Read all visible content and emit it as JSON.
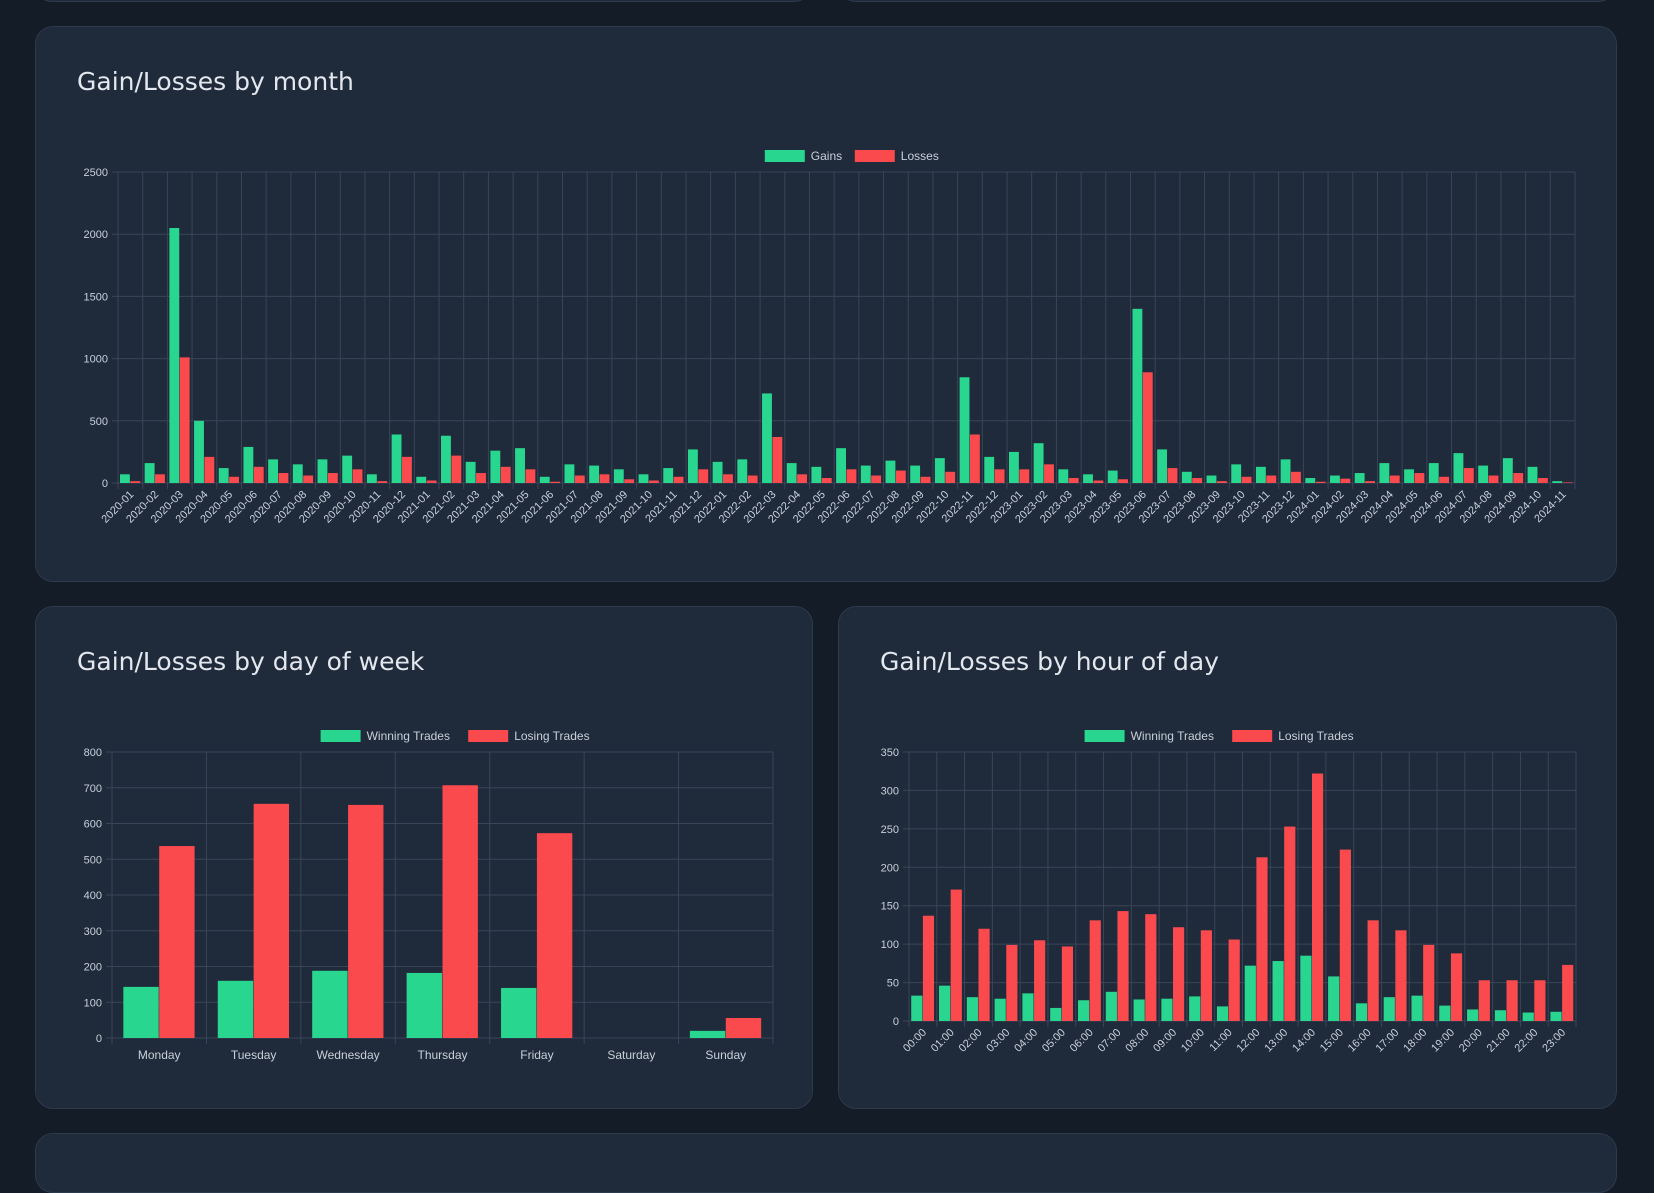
{
  "theme": {
    "bg": "#131c27",
    "card": "#1f2a3a",
    "gain": "#28d68f",
    "loss": "#fa4a4e",
    "grid": "#3a4658",
    "text": "#c9d0da"
  },
  "monthly": {
    "title": "Gain/Losses by month",
    "legend": [
      "Gains",
      "Losses"
    ]
  },
  "weekday": {
    "title": "Gain/Losses by day of week",
    "legend": [
      "Winning Trades",
      "Losing Trades"
    ]
  },
  "hourly": {
    "title": "Gain/Losses by hour of day",
    "legend": [
      "Winning Trades",
      "Losing Trades"
    ]
  },
  "chart_data": [
    {
      "id": "monthly",
      "type": "bar",
      "title": "Gain/Losses by month",
      "xlabel": "",
      "ylabel": "",
      "ylim": [
        0,
        2500
      ],
      "yticks": [
        0,
        500,
        1000,
        1500,
        2000,
        2500
      ],
      "categories": [
        "2020-01",
        "2020-02",
        "2020-03",
        "2020-04",
        "2020-05",
        "2020-06",
        "2020-07",
        "2020-08",
        "2020-09",
        "2020-10",
        "2020-11",
        "2020-12",
        "2021-01",
        "2021-02",
        "2021-03",
        "2021-04",
        "2021-05",
        "2021-06",
        "2021-07",
        "2021-08",
        "2021-09",
        "2021-10",
        "2021-11",
        "2021-12",
        "2022-01",
        "2022-02",
        "2022-03",
        "2022-04",
        "2022-05",
        "2022-06",
        "2022-07",
        "2022-08",
        "2022-09",
        "2022-10",
        "2022-11",
        "2022-12",
        "2023-01",
        "2023-02",
        "2023-03",
        "2023-04",
        "2023-05",
        "2023-06",
        "2023-07",
        "2023-08",
        "2023-09",
        "2023-10",
        "2023-11",
        "2023-12",
        "2024-01",
        "2024-02",
        "2024-03",
        "2024-04",
        "2024-05",
        "2024-06",
        "2024-07",
        "2024-08",
        "2024-09",
        "2024-10",
        "2024-11"
      ],
      "series": [
        {
          "name": "Gains",
          "color": "#28d68f",
          "values": [
            70,
            160,
            2050,
            500,
            120,
            290,
            190,
            150,
            190,
            220,
            70,
            390,
            50,
            380,
            170,
            260,
            280,
            50,
            150,
            140,
            110,
            70,
            120,
            270,
            170,
            190,
            720,
            160,
            130,
            280,
            140,
            180,
            140,
            200,
            850,
            210,
            250,
            320,
            110,
            70,
            100,
            1400,
            270,
            90,
            60,
            150,
            130,
            190,
            40,
            60,
            80,
            160,
            110,
            160,
            240,
            140,
            200,
            130,
            15
          ]
        },
        {
          "name": "Losses",
          "color": "#fa4a4e",
          "values": [
            15,
            70,
            1010,
            210,
            50,
            130,
            80,
            60,
            80,
            110,
            15,
            210,
            20,
            220,
            80,
            130,
            110,
            10,
            60,
            70,
            30,
            20,
            50,
            110,
            70,
            60,
            370,
            70,
            40,
            110,
            60,
            100,
            50,
            90,
            390,
            110,
            110,
            150,
            40,
            20,
            30,
            890,
            120,
            40,
            15,
            50,
            60,
            90,
            10,
            35,
            15,
            60,
            80,
            50,
            120,
            60,
            80,
            40,
            5
          ]
        }
      ]
    },
    {
      "id": "weekday",
      "type": "bar",
      "title": "Gain/Losses by day of week",
      "xlabel": "",
      "ylabel": "",
      "ylim": [
        0,
        800
      ],
      "yticks": [
        0,
        100,
        200,
        300,
        400,
        500,
        600,
        700,
        800
      ],
      "categories": [
        "Monday",
        "Tuesday",
        "Wednesday",
        "Thursday",
        "Friday",
        "Saturday",
        "Sunday"
      ],
      "series": [
        {
          "name": "Winning Trades",
          "color": "#28d68f",
          "values": [
            143,
            160,
            188,
            182,
            140,
            0,
            20
          ]
        },
        {
          "name": "Losing Trades",
          "color": "#fa4a4e",
          "values": [
            537,
            655,
            652,
            707,
            573,
            0,
            56
          ]
        }
      ]
    },
    {
      "id": "hourly",
      "type": "bar",
      "title": "Gain/Losses by hour of day",
      "xlabel": "",
      "ylabel": "",
      "ylim": [
        0,
        350
      ],
      "yticks": [
        0,
        50,
        100,
        150,
        200,
        250,
        300,
        350
      ],
      "categories": [
        "00:00",
        "01:00",
        "02:00",
        "03:00",
        "04:00",
        "05:00",
        "06:00",
        "07:00",
        "08:00",
        "09:00",
        "10:00",
        "11:00",
        "12:00",
        "13:00",
        "14:00",
        "15:00",
        "16:00",
        "17:00",
        "18:00",
        "19:00",
        "20:00",
        "21:00",
        "22:00",
        "23:00"
      ],
      "series": [
        {
          "name": "Winning Trades",
          "color": "#28d68f",
          "values": [
            33,
            46,
            31,
            29,
            36,
            17,
            27,
            38,
            28,
            29,
            32,
            19,
            72,
            78,
            85,
            58,
            23,
            31,
            33,
            20,
            15,
            14,
            11,
            12
          ]
        },
        {
          "name": "Losing Trades",
          "color": "#fa4a4e",
          "values": [
            137,
            171,
            120,
            99,
            105,
            97,
            131,
            143,
            139,
            122,
            118,
            106,
            213,
            253,
            322,
            223,
            131,
            118,
            99,
            88,
            53,
            53,
            53,
            73
          ]
        }
      ]
    }
  ]
}
